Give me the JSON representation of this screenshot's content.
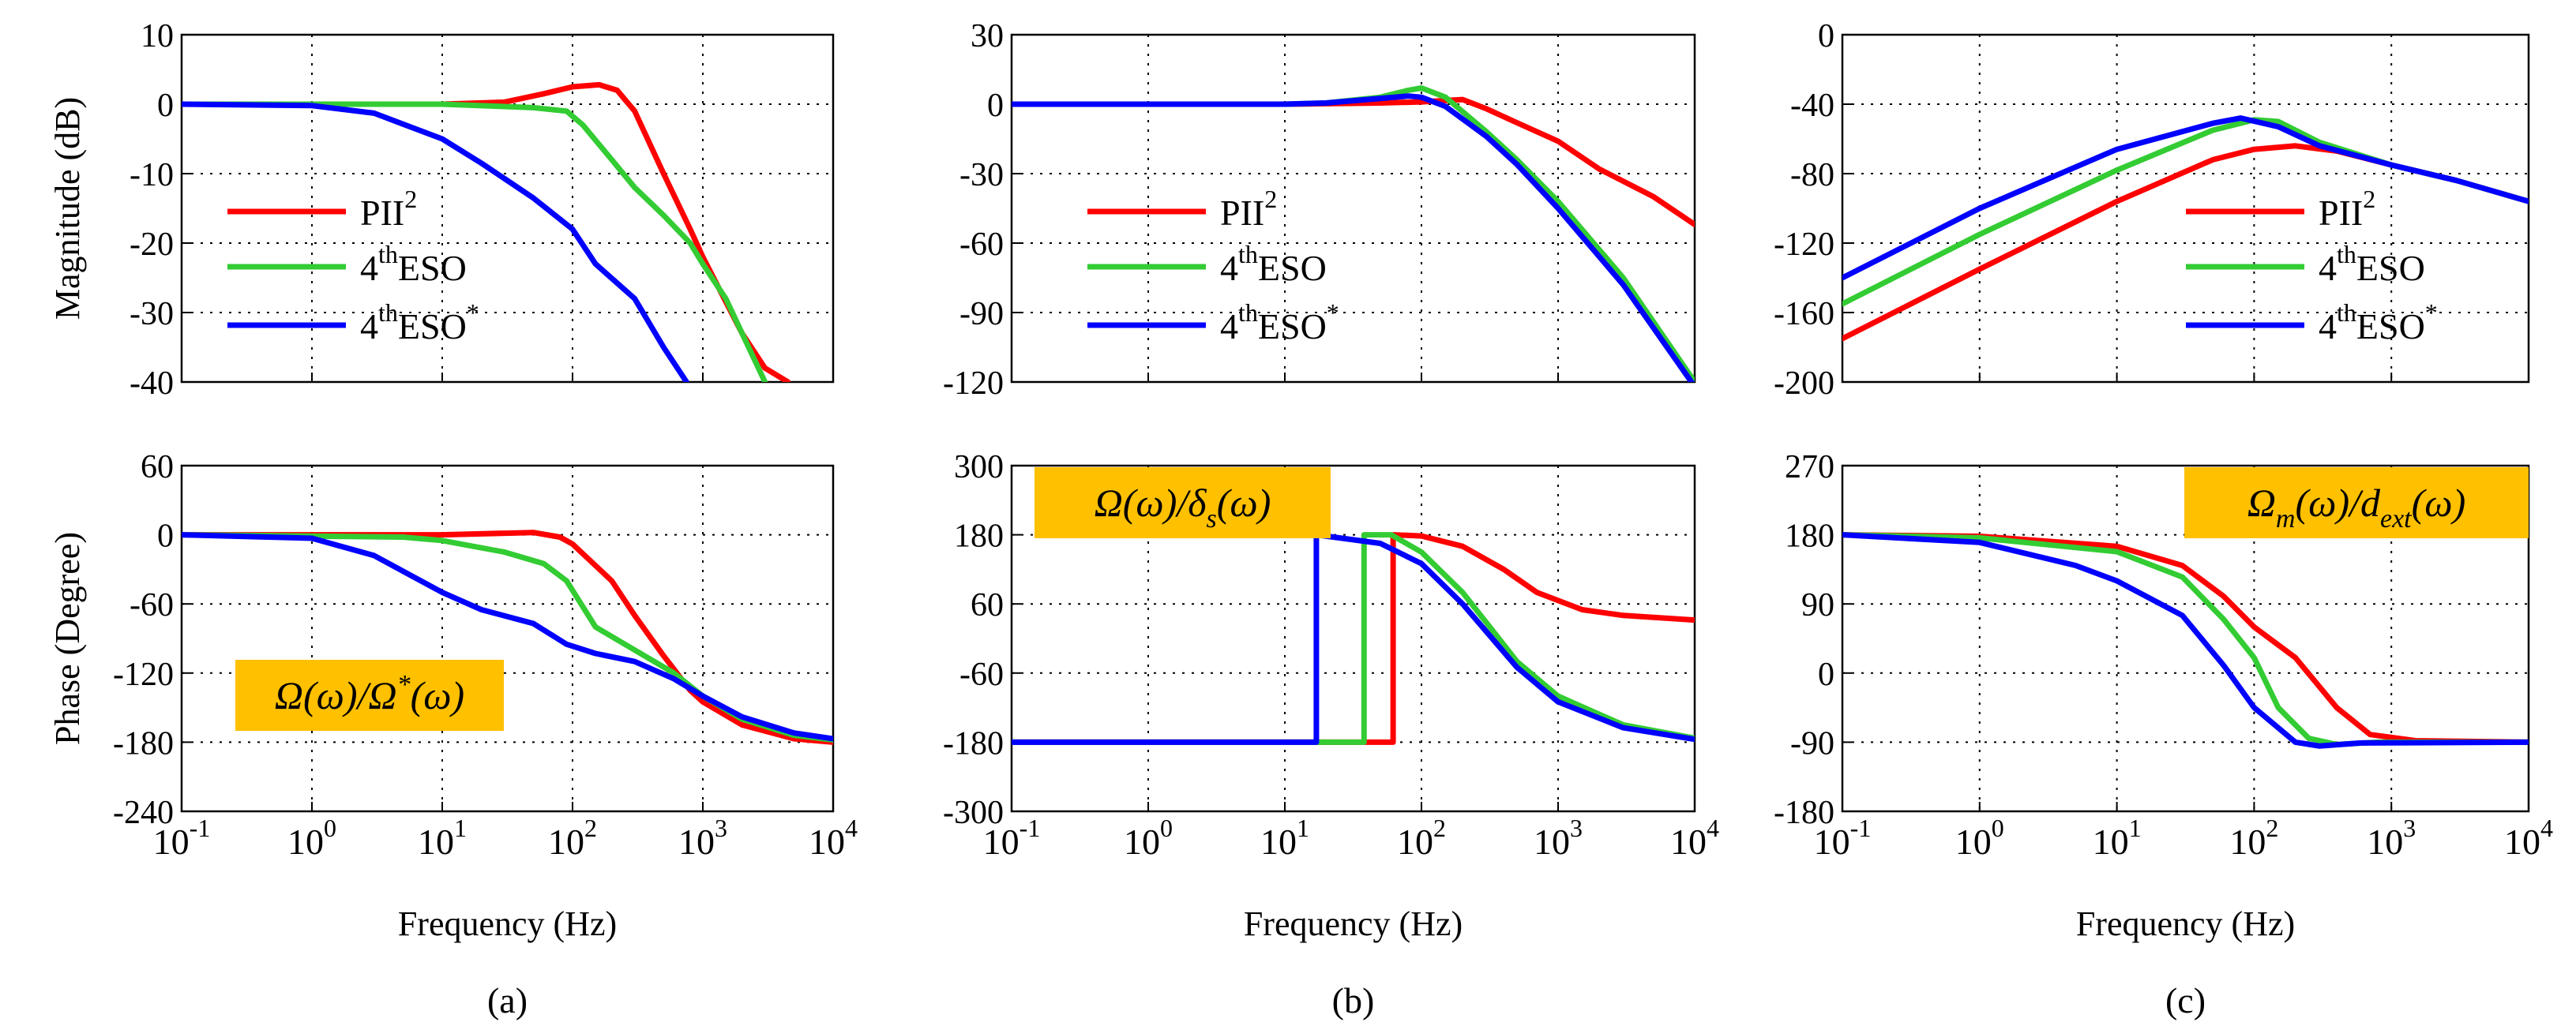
{
  "colors": {
    "PII2": "#ff0000",
    "ESO4": "#33cc33",
    "ESO4star": "#0000ff",
    "label_box": "#ffc000",
    "grid": "#000000"
  },
  "shared": {
    "xlabel": "Frequency (Hz)",
    "x_ticks": [
      {
        "base": "10",
        "exp": "-1"
      },
      {
        "base": "10",
        "exp": "0"
      },
      {
        "base": "10",
        "exp": "1"
      },
      {
        "base": "10",
        "exp": "2"
      },
      {
        "base": "10",
        "exp": "3"
      },
      {
        "base": "10",
        "exp": "4"
      }
    ],
    "mag_ylabel": "Magnitude (dB)",
    "phase_ylabel": "Phase (Degree)",
    "legend": [
      {
        "base": "PII",
        "sup": "2",
        "tail": "",
        "sup2": "",
        "color_key": "PII2"
      },
      {
        "base": "4",
        "sup": "th",
        "tail": "ESO",
        "sup2": "",
        "color_key": "ESO4"
      },
      {
        "base": "4",
        "sup": "th",
        "tail": "ESO",
        "sup2": "*",
        "color_key": "ESO4star"
      }
    ]
  },
  "columns": [
    {
      "sublabel": "(a)",
      "tf_label": "Ω(ω)/Ω*(ω)"
    },
    {
      "sublabel": "(b)",
      "tf_label": "Ω(ω)/δs(ω)"
    },
    {
      "sublabel": "(c)",
      "tf_label": "Ωm(ω)/dext(ω)"
    }
  ],
  "chart_data": [
    {
      "type": "line",
      "panel": "a-magnitude",
      "xscale": "log",
      "xlim": [
        0.1,
        10000
      ],
      "ylim": [
        -40,
        10
      ],
      "yticks": [
        "10",
        "0",
        "-10",
        "-20",
        "-30",
        "-40"
      ],
      "grid": true,
      "legend_position": "left",
      "series": [
        {
          "name": "PII²",
          "points": [
            [
              0.1,
              0
            ],
            [
              10,
              0
            ],
            [
              30,
              0.3
            ],
            [
              60,
              1.5
            ],
            [
              100,
              2.5
            ],
            [
              160,
              2.8
            ],
            [
              220,
              2
            ],
            [
              300,
              -1
            ],
            [
              500,
              -10
            ],
            [
              800,
              -18
            ],
            [
              1000,
              -22
            ],
            [
              2000,
              -33
            ],
            [
              3000,
              -38
            ],
            [
              4500,
              -40
            ]
          ]
        },
        {
          "name": "4thESO",
          "points": [
            [
              0.1,
              0
            ],
            [
              10,
              0
            ],
            [
              50,
              -0.5
            ],
            [
              90,
              -1
            ],
            [
              120,
              -3
            ],
            [
              200,
              -8
            ],
            [
              300,
              -12
            ],
            [
              500,
              -16
            ],
            [
              800,
              -20
            ],
            [
              1000,
              -23
            ],
            [
              1500,
              -28
            ],
            [
              2000,
              -33
            ],
            [
              3000,
              -40
            ]
          ]
        },
        {
          "name": "4thESO*",
          "points": [
            [
              0.1,
              0
            ],
            [
              1,
              -0.2
            ],
            [
              3,
              -1.3
            ],
            [
              10,
              -5
            ],
            [
              20,
              -8.5
            ],
            [
              50,
              -13.5
            ],
            [
              100,
              -18
            ],
            [
              150,
              -23
            ],
            [
              300,
              -28
            ],
            [
              500,
              -35
            ],
            [
              750,
              -40
            ]
          ]
        }
      ]
    },
    {
      "type": "line",
      "panel": "b-magnitude",
      "xscale": "log",
      "xlim": [
        0.1,
        10000
      ],
      "ylim": [
        -120,
        30
      ],
      "yticks": [
        "30",
        "0",
        "-30",
        "-60",
        "-90",
        "-120"
      ],
      "grid": true,
      "legend_position": "left",
      "series": [
        {
          "name": "PII²",
          "points": [
            [
              0.1,
              0
            ],
            [
              10,
              0
            ],
            [
              50,
              0.5
            ],
            [
              100,
              1
            ],
            [
              200,
              2
            ],
            [
              300,
              -2
            ],
            [
              500,
              -8
            ],
            [
              1000,
              -16
            ],
            [
              2000,
              -28
            ],
            [
              5000,
              -40
            ],
            [
              10000,
              -52
            ]
          ]
        },
        {
          "name": "4thESO",
          "points": [
            [
              0.1,
              0
            ],
            [
              10,
              0
            ],
            [
              20,
              0.5
            ],
            [
              50,
              3
            ],
            [
              80,
              6
            ],
            [
              100,
              7
            ],
            [
              150,
              3
            ],
            [
              300,
              -12
            ],
            [
              500,
              -24
            ],
            [
              1000,
              -42
            ],
            [
              3000,
              -75
            ],
            [
              10000,
              -120
            ]
          ]
        },
        {
          "name": "4thESO*",
          "points": [
            [
              0.1,
              0
            ],
            [
              10,
              0
            ],
            [
              20,
              0.5
            ],
            [
              50,
              2.5
            ],
            [
              80,
              3.5
            ],
            [
              100,
              3
            ],
            [
              150,
              -1
            ],
            [
              300,
              -14
            ],
            [
              500,
              -26
            ],
            [
              1000,
              -45
            ],
            [
              3000,
              -78
            ],
            [
              10000,
              -122
            ]
          ]
        }
      ]
    },
    {
      "type": "line",
      "panel": "c-magnitude",
      "xscale": "log",
      "xlim": [
        0.1,
        10000
      ],
      "ylim": [
        -200,
        0
      ],
      "yticks": [
        "0",
        "-40",
        "-80",
        "-120",
        "-160",
        "-200"
      ],
      "grid": true,
      "legend_position": "right",
      "series": [
        {
          "name": "PII²",
          "points": [
            [
              0.1,
              -175
            ],
            [
              1,
              -135
            ],
            [
              10,
              -96
            ],
            [
              50,
              -72
            ],
            [
              100,
              -66
            ],
            [
              200,
              -64
            ],
            [
              400,
              -67
            ],
            [
              1000,
              -75
            ],
            [
              3000,
              -84
            ],
            [
              10000,
              -96
            ]
          ]
        },
        {
          "name": "4thESO",
          "points": [
            [
              0.1,
              -155
            ],
            [
              1,
              -115
            ],
            [
              10,
              -78
            ],
            [
              50,
              -55
            ],
            [
              100,
              -49
            ],
            [
              150,
              -50
            ],
            [
              300,
              -62
            ],
            [
              1000,
              -75
            ],
            [
              3000,
              -84
            ],
            [
              10000,
              -96
            ]
          ]
        },
        {
          "name": "4thESO*",
          "points": [
            [
              0.1,
              -140
            ],
            [
              1,
              -100
            ],
            [
              10,
              -66
            ],
            [
              50,
              -51
            ],
            [
              80,
              -48
            ],
            [
              150,
              -53
            ],
            [
              300,
              -64
            ],
            [
              1000,
              -75
            ],
            [
              3000,
              -84
            ],
            [
              10000,
              -96
            ]
          ]
        }
      ]
    },
    {
      "type": "line",
      "panel": "a-phase",
      "xscale": "log",
      "xlim": [
        0.1,
        10000
      ],
      "ylim": [
        -240,
        60
      ],
      "yticks": [
        "60",
        "0",
        "-60",
        "-120",
        "-180",
        "-240"
      ],
      "grid": true,
      "series": [
        {
          "name": "PII²",
          "points": [
            [
              0.1,
              0
            ],
            [
              10,
              0
            ],
            [
              50,
              2
            ],
            [
              80,
              -2
            ],
            [
              100,
              -8
            ],
            [
              200,
              -40
            ],
            [
              300,
              -70
            ],
            [
              500,
              -105
            ],
            [
              800,
              -135
            ],
            [
              1000,
              -145
            ],
            [
              2000,
              -165
            ],
            [
              5000,
              -177
            ],
            [
              10000,
              -180
            ]
          ]
        },
        {
          "name": "4thESO",
          "points": [
            [
              0.1,
              0
            ],
            [
              5,
              -2
            ],
            [
              10,
              -5
            ],
            [
              30,
              -15
            ],
            [
              60,
              -25
            ],
            [
              90,
              -40
            ],
            [
              150,
              -80
            ],
            [
              300,
              -100
            ],
            [
              600,
              -120
            ],
            [
              1000,
              -140
            ],
            [
              2000,
              -160
            ],
            [
              5000,
              -174
            ],
            [
              10000,
              -178
            ]
          ]
        },
        {
          "name": "4thESO*",
          "points": [
            [
              0.1,
              0
            ],
            [
              1,
              -3
            ],
            [
              3,
              -18
            ],
            [
              10,
              -50
            ],
            [
              20,
              -65
            ],
            [
              50,
              -77
            ],
            [
              90,
              -95
            ],
            [
              150,
              -103
            ],
            [
              300,
              -110
            ],
            [
              600,
              -125
            ],
            [
              1000,
              -140
            ],
            [
              2000,
              -158
            ],
            [
              5000,
              -172
            ],
            [
              10000,
              -177
            ]
          ]
        }
      ]
    },
    {
      "type": "line",
      "panel": "b-phase",
      "xscale": "log",
      "xlim": [
        0.1,
        10000
      ],
      "ylim": [
        -300,
        300
      ],
      "yticks": [
        "300",
        "180",
        "60",
        "-60",
        "-180",
        "-300"
      ],
      "grid": true,
      "series": [
        {
          "name": "PII²",
          "points": [
            [
              0.1,
              -180
            ],
            [
              62,
              -180
            ],
            [
              62,
              180
            ],
            [
              100,
              178
            ],
            [
              200,
              160
            ],
            [
              400,
              120
            ],
            [
              700,
              80
            ],
            [
              1500,
              50
            ],
            [
              3000,
              40
            ],
            [
              10000,
              32
            ]
          ]
        },
        {
          "name": "4thESO",
          "points": [
            [
              0.1,
              -180
            ],
            [
              38,
              -180
            ],
            [
              38,
              180
            ],
            [
              60,
              180
            ],
            [
              100,
              150
            ],
            [
              200,
              80
            ],
            [
              500,
              -40
            ],
            [
              1000,
              -100
            ],
            [
              3000,
              -150
            ],
            [
              10000,
              -173
            ]
          ]
        },
        {
          "name": "4thESO*",
          "points": [
            [
              0.1,
              -180
            ],
            [
              17,
              -180
            ],
            [
              17,
              180
            ],
            [
              50,
              165
            ],
            [
              100,
              130
            ],
            [
              200,
              60
            ],
            [
              500,
              -50
            ],
            [
              1000,
              -110
            ],
            [
              3000,
              -155
            ],
            [
              10000,
              -175
            ]
          ]
        }
      ]
    },
    {
      "type": "line",
      "panel": "c-phase",
      "xscale": "log",
      "xlim": [
        0.1,
        10000
      ],
      "ylim": [
        -180,
        270
      ],
      "yticks": [
        "270",
        "180",
        "90",
        "0",
        "-90",
        "-180"
      ],
      "grid": true,
      "series": [
        {
          "name": "PII²",
          "points": [
            [
              0.1,
              180
            ],
            [
              1,
              178
            ],
            [
              10,
              165
            ],
            [
              30,
              140
            ],
            [
              60,
              100
            ],
            [
              100,
              60
            ],
            [
              200,
              20
            ],
            [
              400,
              -45
            ],
            [
              700,
              -80
            ],
            [
              1500,
              -88
            ],
            [
              10000,
              -90
            ]
          ]
        },
        {
          "name": "4thESO",
          "points": [
            [
              0.1,
              180
            ],
            [
              1,
              176
            ],
            [
              10,
              158
            ],
            [
              30,
              125
            ],
            [
              60,
              70
            ],
            [
              100,
              20
            ],
            [
              150,
              -45
            ],
            [
              250,
              -85
            ],
            [
              400,
              -93
            ],
            [
              800,
              -90
            ],
            [
              10000,
              -90
            ]
          ]
        },
        {
          "name": "4thESO*",
          "points": [
            [
              0.1,
              180
            ],
            [
              1,
              170
            ],
            [
              5,
              140
            ],
            [
              10,
              120
            ],
            [
              30,
              75
            ],
            [
              60,
              10
            ],
            [
              100,
              -45
            ],
            [
              200,
              -90
            ],
            [
              300,
              -95
            ],
            [
              600,
              -91
            ],
            [
              10000,
              -90
            ]
          ]
        }
      ]
    }
  ]
}
